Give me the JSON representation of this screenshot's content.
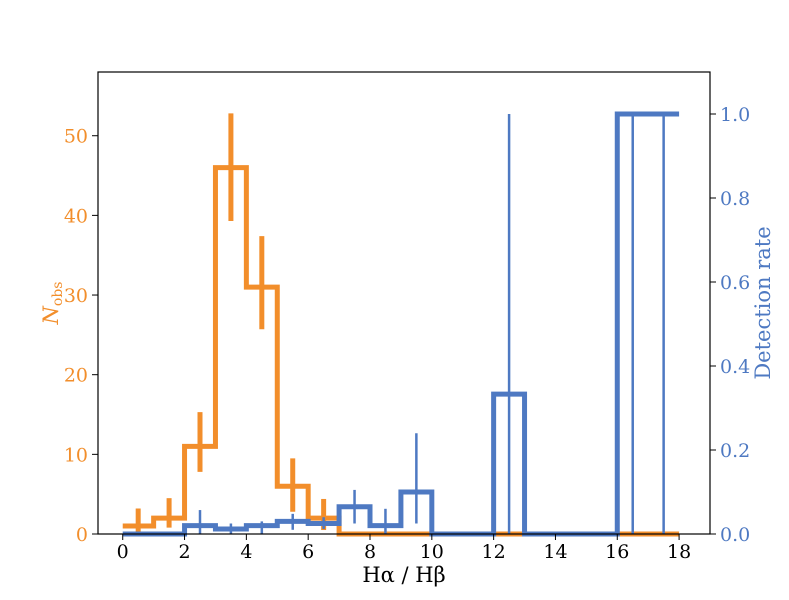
{
  "chart_data": {
    "type": "histogram",
    "xlabel": "Hα / Hβ",
    "ylabel_left_main": "N",
    "ylabel_left_sub": "obs",
    "ylabel_right": "Detection rate",
    "xlim": [
      -0.8,
      19.0
    ],
    "ylim_left": [
      0,
      58
    ],
    "ylim_right": [
      0,
      1.1
    ],
    "x_ticks": [
      0,
      2,
      4,
      6,
      8,
      10,
      12,
      14,
      16,
      18
    ],
    "y_left_ticks": [
      0,
      10,
      20,
      30,
      40,
      50
    ],
    "y_right_ticks": [
      "0.0",
      "0.2",
      "0.4",
      "0.6",
      "0.8",
      "1.0"
    ],
    "bin_edges": [
      0,
      1,
      2,
      3,
      4,
      5,
      6,
      7,
      8,
      9,
      10,
      11,
      12,
      13,
      14,
      15,
      16,
      17,
      18
    ],
    "series": [
      {
        "name": "N_obs",
        "axis": "left",
        "color": "#F28E2B",
        "counts": [
          1,
          2,
          11,
          46,
          31,
          6,
          2,
          0,
          0,
          0,
          0,
          0,
          0,
          0,
          0,
          0,
          0,
          0
        ],
        "err_low": [
          0.2,
          0.8,
          7.8,
          39.3,
          25.7,
          2.8,
          0.5,
          0,
          0,
          0,
          0,
          0,
          0,
          0,
          0,
          0,
          0,
          0
        ],
        "err_high": [
          3.2,
          4.5,
          15.3,
          52.8,
          37.4,
          9.5,
          4.4,
          0,
          0,
          0,
          0,
          0,
          0,
          0,
          0,
          0,
          0,
          0
        ]
      },
      {
        "name": "Detection rate",
        "axis": "right",
        "color": "#4E79C2",
        "values": [
          0,
          0,
          0.02,
          0.012,
          0.02,
          0.03,
          0.025,
          0.065,
          0.02,
          0.1,
          0,
          0,
          0.333,
          0,
          0,
          0,
          1.0,
          1.0
        ],
        "err_low": [
          0,
          0,
          0,
          0,
          0,
          0.01,
          0.012,
          0.025,
          0,
          0.025,
          0,
          0,
          0,
          0,
          0,
          0,
          0,
          0
        ],
        "err_high": [
          0,
          0,
          0.057,
          0.025,
          0.03,
          0.048,
          0.04,
          0.105,
          0.06,
          0.24,
          0,
          0,
          1.0,
          0,
          0,
          0,
          1.0,
          1.0
        ]
      }
    ]
  }
}
